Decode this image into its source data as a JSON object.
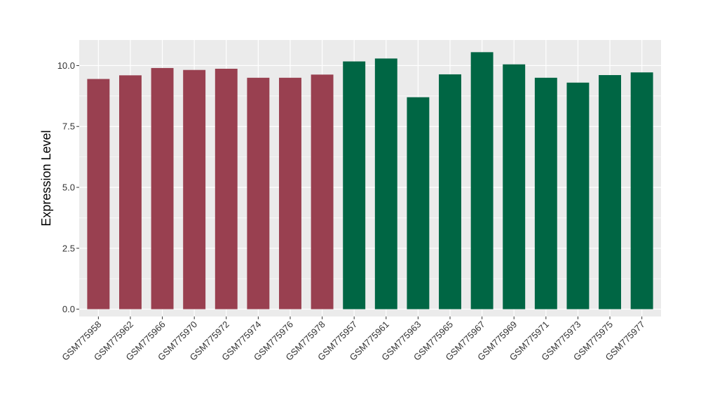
{
  "chart_data": {
    "type": "bar",
    "ylabel": "Expression Level",
    "xlabel": "",
    "title": "",
    "ylim": [
      -0.3,
      11.05
    ],
    "yticks": [
      0.0,
      2.5,
      5.0,
      7.5,
      10.0
    ],
    "ytick_labels": [
      "0.0",
      "2.5",
      "5.0",
      "7.5",
      "10.0"
    ],
    "grid": true,
    "panel_background": "#ebebeb",
    "categories": [
      "GSM775958",
      "GSM775962",
      "GSM775966",
      "GSM775970",
      "GSM775972",
      "GSM775974",
      "GSM775976",
      "GSM775978",
      "GSM775957",
      "GSM775961",
      "GSM775963",
      "GSM775965",
      "GSM775967",
      "GSM775969",
      "GSM775971",
      "GSM775973",
      "GSM775975",
      "GSM775977"
    ],
    "values": [
      9.45,
      9.6,
      9.9,
      9.82,
      9.87,
      9.5,
      9.5,
      9.63,
      10.17,
      10.29,
      8.7,
      9.64,
      10.55,
      10.05,
      9.5,
      9.3,
      9.61,
      9.72
    ],
    "bar_colors": [
      "#994050",
      "#994050",
      "#994050",
      "#994050",
      "#994050",
      "#994050",
      "#994050",
      "#994050",
      "#006644",
      "#006644",
      "#006644",
      "#006644",
      "#006644",
      "#006644",
      "#006644",
      "#006644",
      "#006644",
      "#006644"
    ]
  }
}
